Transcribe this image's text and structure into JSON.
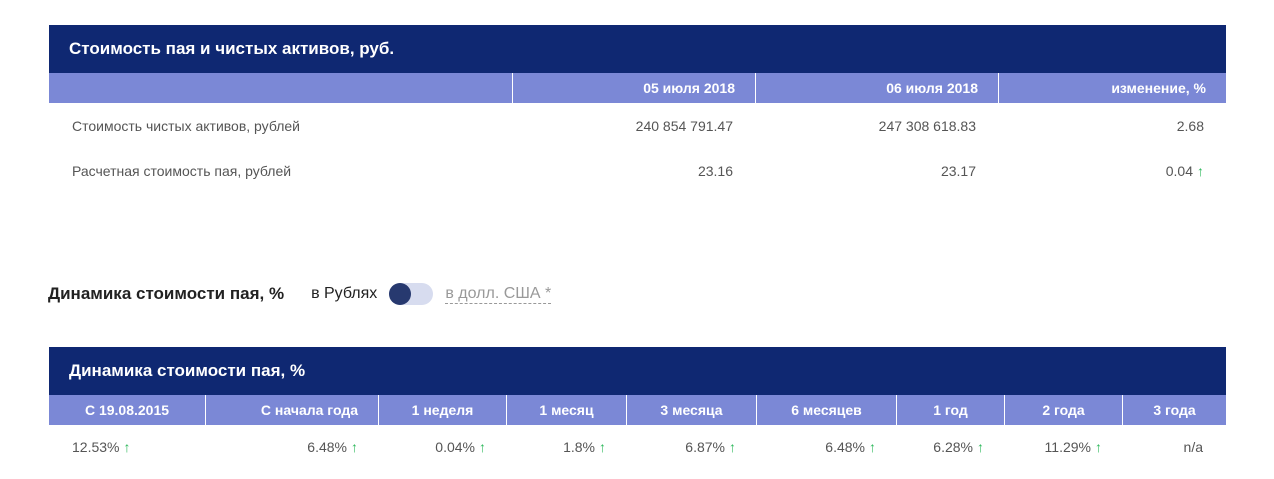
{
  "nav_table": {
    "title": "Стоимость пая и чистых активов, руб.",
    "headers": [
      "",
      "05 июля 2018",
      "06 июля 2018",
      "изменение, %"
    ],
    "rows": [
      {
        "label": "Стоимость чистых активов, рублей",
        "v1": "240 854 791.47",
        "v2": "247 308 618.83",
        "change": "2.68",
        "trend": ""
      },
      {
        "label": "Расчетная стоимость пая, рублей",
        "v1": "23.16",
        "v2": "23.17",
        "change": "0.04",
        "trend": "↑"
      }
    ]
  },
  "dynamics_toggle": {
    "title": "Динамика стоимости пая, %",
    "option_rub": "в Рублях",
    "option_usd": "в долл. США *",
    "selected": "в Рублях"
  },
  "dynamics_table": {
    "title": "Динамика стоимости пая, %",
    "headers": [
      "С 19.08.2015",
      "С начала года",
      "1 неделя",
      "1 месяц",
      "3 месяца",
      "6 месяцев",
      "1 год",
      "2 года",
      "3 года"
    ],
    "values": [
      {
        "value": "12.53%",
        "trend": "↑"
      },
      {
        "value": "6.48%",
        "trend": "↑"
      },
      {
        "value": "0.04%",
        "trend": "↑"
      },
      {
        "value": "1.8%",
        "trend": "↑"
      },
      {
        "value": "6.87%",
        "trend": "↑"
      },
      {
        "value": "6.48%",
        "trend": "↑"
      },
      {
        "value": "6.28%",
        "trend": "↑"
      },
      {
        "value": "11.29%",
        "trend": "↑"
      },
      {
        "value": "n/a",
        "trend": ""
      }
    ]
  },
  "colors": {
    "title_bg": "#0f2872",
    "header_bg": "#7b88d6",
    "up_arrow": "#2eb85c"
  }
}
